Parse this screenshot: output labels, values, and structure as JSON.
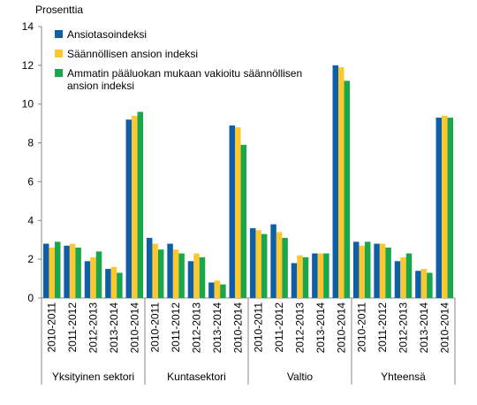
{
  "chart_data": {
    "type": "bar",
    "y_axis_label": "Prosenttia",
    "categories": [
      "2010-2011",
      "2011-2012",
      "2012-2013",
      "2013-2014",
      "2010-2014",
      "2010-2011",
      "2011-2012",
      "2012-2013",
      "2013-2014",
      "2010-2014",
      "2010-2011",
      "2011-2012",
      "2012-2013",
      "2013-2014",
      "2010-2014",
      "2010-2011",
      "2011-2012",
      "2012-2013",
      "2013-2014",
      "2010-2014"
    ],
    "groups": [
      "Yksityinen sektori",
      "Kuntasektori",
      "Valtio",
      "Yhteensä"
    ],
    "series": [
      {
        "name": "Ansiotasoindeksi",
        "color": "#0f5fa6",
        "values": [
          2.8,
          2.7,
          1.9,
          1.5,
          9.2,
          3.1,
          2.8,
          1.9,
          0.8,
          8.9,
          3.6,
          3.8,
          1.8,
          2.3,
          12.0,
          2.9,
          2.8,
          1.9,
          1.4,
          9.3
        ]
      },
      {
        "name": "Säännöllisen ansion indeksi",
        "color": "#fdc82f",
        "values": [
          2.6,
          2.8,
          2.1,
          1.6,
          9.4,
          2.8,
          2.5,
          2.3,
          0.9,
          8.8,
          3.5,
          3.4,
          2.2,
          2.3,
          11.9,
          2.7,
          2.8,
          2.1,
          1.5,
          9.4
        ]
      },
      {
        "name": "Ammatin pääluokan mukaan vakioitu säännöllisen ansion indeksi",
        "color": "#1aa64a",
        "values": [
          2.9,
          2.6,
          2.4,
          1.3,
          9.6,
          2.5,
          2.3,
          2.1,
          0.7,
          7.9,
          3.3,
          3.1,
          2.1,
          2.3,
          11.2,
          2.9,
          2.6,
          2.3,
          1.3,
          9.3
        ]
      }
    ],
    "ylim": [
      0,
      14
    ],
    "yticks": [
      0,
      2,
      4,
      6,
      8,
      10,
      12,
      14
    ],
    "legend": "upper left"
  }
}
